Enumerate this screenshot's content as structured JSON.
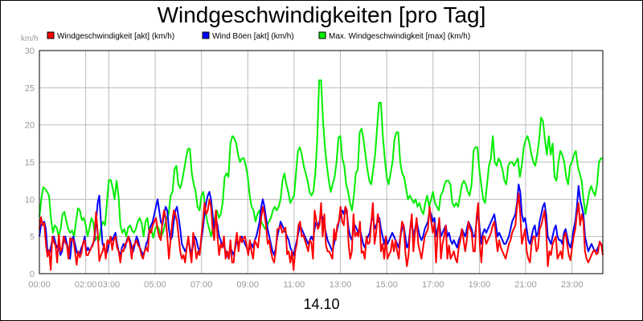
{
  "chart_data": {
    "type": "line",
    "title": "Windgeschwindigkeiten [pro Tag]",
    "ylabel": "km/h",
    "xlabel": "14.10",
    "ylim": [
      0,
      30
    ],
    "yticks": [
      "0",
      "5",
      "10",
      "15",
      "20",
      "25",
      "30"
    ],
    "xlim": [
      "00:00",
      "24:20"
    ],
    "xticks": [
      "00:00",
      "02:00",
      "03:00",
      "05:00",
      "07:00",
      "09:00",
      "11:00",
      "13:00",
      "15:00",
      "17:00",
      "19:00",
      "21:00",
      "23:00"
    ],
    "grid": true,
    "legend_position": "top",
    "series": [
      {
        "name": "Windgeschwindigkeit [akt] (km/h)",
        "color": "#ff0000",
        "values": [
          6.0,
          7.6,
          6.5,
          6.8,
          4.0,
          2.3,
          3.2,
          0.5,
          5.0,
          4.2,
          3.8,
          1.5,
          5.2,
          3.0,
          3.4,
          5.0,
          4.2,
          3.8,
          2.0,
          4.8,
          4.5,
          4.6,
          3.0,
          1.2,
          3.0,
          2.2,
          2.8,
          4.2,
          4.5,
          2.5,
          2.5,
          3.0,
          3.5,
          3.8,
          5.0,
          8.3,
          5.6,
          1.7,
          2.5,
          3.0,
          4.0,
          2.0,
          4.5,
          4.0,
          5.0,
          3.2,
          4.6,
          5.0,
          3.5,
          3.0,
          1.5,
          3.2,
          3.0,
          4.0,
          4.2,
          5.0,
          4.0,
          2.0,
          3.8,
          4.0,
          4.5,
          3.8,
          3.5,
          2.5,
          2.0,
          3.0,
          3.5,
          3.0,
          6.0,
          5.5,
          6.5,
          7.0,
          7.5,
          6.0,
          5.0,
          4.5,
          7.0,
          8.5,
          7.5,
          5.0,
          2.0,
          4.5,
          6.8,
          8.5,
          8.0,
          7.0,
          5.0,
          3.0,
          2.0,
          2.5,
          1.5,
          3.5,
          5.0,
          3.0,
          1.5,
          5.5,
          4.0,
          2.0,
          3.0,
          2.5,
          5.0,
          7.0,
          9.5,
          8.0,
          8.5,
          10.0,
          9.0,
          6.0,
          4.5,
          8.5,
          5.0,
          2.5,
          4.0,
          3.5,
          5.0,
          2.0,
          3.0,
          2.0,
          4.5,
          1.5,
          1.5,
          4.0,
          5.5,
          3.0,
          5.0,
          4.2,
          4.8,
          5.0,
          3.8,
          2.5,
          4.5,
          3.0,
          2.0,
          4.5,
          4.0,
          3.5,
          5.5,
          7.5,
          9.0,
          8.0,
          6.5,
          4.0,
          4.5,
          3.0,
          2.0,
          1.5,
          3.0,
          6.0,
          6.0,
          6.5,
          5.5,
          5.8,
          6.2,
          2.6,
          3.0,
          1.5,
          3.0,
          0.5,
          3.0,
          4.0,
          6.5,
          7.0,
          5.0,
          5.2,
          4.5,
          3.8,
          3.0,
          4.5,
          4.2,
          2.0,
          8.5,
          7.2,
          6.0,
          6.5,
          9.5,
          5.0,
          8.0,
          3.8,
          3.0,
          3.0,
          2.5,
          2.0,
          6.0,
          4.5,
          6.5,
          7.0,
          9.0,
          7.0,
          6.5,
          9.0,
          8.5,
          4.0,
          2.0,
          3.0,
          8.0,
          5.0,
          5.5,
          5.0,
          7.0,
          2.8,
          3.0,
          2.0,
          5.0,
          4.0,
          4.2,
          7.0,
          9.5,
          4.0,
          5.5,
          8.0,
          7.0,
          3.0,
          4.0,
          2.0,
          5.0,
          2.0,
          2.6,
          3.0,
          4.5,
          3.0,
          4.5,
          3.0,
          2.0,
          5.0,
          7.0,
          6.5,
          3.0,
          1.0,
          2.5,
          6.0,
          8.0,
          3.0,
          5.5,
          7.5,
          4.0,
          3.0,
          2.0,
          3.5,
          5.0,
          5.5,
          6.0,
          9.0,
          7.0,
          5.5,
          6.8,
          1.5,
          5.5,
          7.5,
          2.0,
          4.0,
          5.0,
          6.5,
          2.0,
          3.8,
          2.0,
          2.5,
          3.0,
          2.0,
          1.5,
          3.5,
          4.5,
          6.0,
          4.5,
          3.0,
          4.5,
          7.0,
          6.0,
          5.5,
          3.0,
          3.0,
          7.5,
          9.5,
          4.0,
          1.5,
          5.0,
          5.0,
          4.0,
          4.5,
          5.0,
          5.5,
          6.5,
          7.0,
          5.0,
          3.0,
          4.5,
          3.5,
          3.0,
          2.5,
          2.0,
          3.0,
          4.0,
          4.5,
          5.5,
          6.0,
          6.5,
          9.0,
          10.8,
          8.0,
          4.0,
          5.0,
          6.0,
          3.0,
          2.0,
          1.5,
          4.0,
          5.0,
          5.0,
          3.0,
          3.5,
          6.0,
          6.5,
          7.5,
          8.5,
          6.0,
          1.0,
          3.0,
          2.5,
          4.0,
          4.5,
          5.0,
          2.0,
          2.5,
          3.0,
          2.0,
          5.0,
          5.5,
          4.0,
          2.5,
          1.8,
          3.5,
          5.0,
          6.0,
          8.0,
          9.5,
          6.5,
          8.0,
          7.0,
          3.0,
          2.0,
          1.5,
          2.0,
          2.5,
          3.0,
          3.2,
          2.6,
          2.8,
          4.3,
          4.0,
          2.5
        ]
      },
      {
        "name": "Wind Böen [akt] (km/h)",
        "color": "#0000ff",
        "values": [
          5.0,
          6.5,
          6.8,
          7.0,
          6.0,
          3.0,
          2.5,
          3.5,
          4.5,
          5.0,
          4.0,
          3.5,
          4.0,
          2.5,
          3.0,
          4.5,
          5.0,
          4.0,
          3.0,
          2.0,
          4.5,
          5.0,
          4.0,
          3.0,
          2.5,
          2.8,
          3.5,
          4.0,
          5.0,
          3.0,
          3.5,
          3.0,
          3.5,
          4.0,
          4.5,
          7.0,
          9.5,
          10.5,
          7.0,
          4.0,
          3.5,
          2.5,
          3.0,
          4.0,
          5.0,
          4.5,
          5.0,
          5.5,
          4.0,
          3.0,
          2.5,
          3.5,
          4.0,
          3.5,
          4.5,
          5.0,
          4.5,
          3.5,
          3.0,
          4.0,
          5.0,
          4.5,
          3.5,
          3.0,
          2.5,
          3.0,
          4.0,
          4.5,
          6.0,
          6.5,
          7.0,
          8.0,
          9.0,
          10.0,
          8.5,
          7.0,
          6.5,
          8.0,
          9.0,
          8.5,
          6.0,
          4.5,
          5.0,
          7.0,
          8.5,
          9.0,
          7.5,
          6.0,
          4.0,
          3.5,
          3.0,
          3.5,
          4.5,
          3.5,
          2.5,
          4.0,
          5.0,
          4.5,
          3.5,
          3.0,
          4.5,
          6.0,
          8.0,
          9.5,
          10.5,
          11.0,
          10.0,
          8.0,
          6.0,
          7.5,
          6.5,
          5.0,
          4.5,
          3.5,
          4.0,
          3.0,
          2.5,
          2.0,
          3.5,
          3.0,
          2.5,
          3.5,
          4.5,
          4.0,
          4.5,
          5.0,
          4.5,
          4.0,
          3.5,
          3.0,
          3.5,
          4.0,
          3.5,
          4.5,
          5.0,
          6.0,
          7.0,
          9.0,
          10.0,
          9.0,
          7.5,
          6.0,
          5.0,
          4.0,
          3.0,
          2.5,
          3.5,
          5.0,
          6.0,
          7.0,
          6.5,
          6.0,
          5.5,
          5.0,
          4.5,
          3.5,
          3.0,
          2.5,
          3.5,
          4.5,
          5.5,
          6.5,
          6.0,
          5.5,
          5.0,
          4.5,
          4.0,
          4.5,
          5.0,
          4.5,
          6.0,
          7.0,
          6.5,
          7.0,
          8.0,
          7.5,
          6.5,
          5.5,
          4.5,
          4.0,
          3.5,
          3.0,
          4.0,
          5.0,
          6.0,
          7.0,
          8.0,
          8.5,
          8.0,
          9.0,
          8.0,
          6.0,
          5.0,
          4.5,
          6.0,
          6.5,
          6.0,
          5.5,
          6.0,
          5.0,
          4.0,
          3.5,
          4.5,
          5.0,
          5.5,
          7.0,
          8.0,
          6.0,
          6.5,
          7.0,
          7.5,
          6.0,
          5.0,
          4.0,
          5.0,
          4.0,
          4.5,
          5.0,
          5.5,
          5.0,
          4.5,
          4.0,
          3.5,
          5.0,
          6.0,
          6.5,
          5.0,
          3.5,
          4.0,
          6.0,
          7.0,
          5.0,
          6.0,
          7.0,
          6.0,
          5.0,
          4.5,
          5.0,
          6.0,
          6.5,
          7.0,
          8.5,
          8.0,
          7.0,
          7.5,
          5.0,
          6.0,
          7.0,
          5.0,
          5.5,
          6.0,
          6.5,
          5.0,
          5.5,
          4.5,
          4.0,
          4.5,
          4.0,
          3.5,
          4.5,
          5.0,
          6.0,
          5.5,
          5.0,
          6.0,
          7.0,
          6.5,
          6.0,
          5.0,
          5.0,
          7.0,
          8.5,
          6.0,
          4.0,
          5.5,
          6.0,
          5.5,
          6.0,
          6.5,
          7.0,
          7.5,
          8.0,
          6.5,
          5.0,
          5.5,
          5.0,
          4.5,
          4.0,
          4.0,
          4.5,
          5.0,
          6.0,
          7.0,
          7.5,
          8.0,
          9.5,
          12.0,
          11.0,
          8.0,
          7.0,
          7.5,
          6.0,
          4.5,
          4.0,
          5.0,
          6.0,
          6.5,
          5.0,
          5.5,
          7.0,
          8.0,
          9.0,
          9.5,
          8.0,
          5.0,
          4.5,
          4.0,
          5.0,
          6.0,
          6.5,
          5.0,
          4.5,
          4.5,
          4.0,
          5.5,
          6.0,
          5.0,
          4.0,
          3.5,
          4.5,
          6.0,
          7.0,
          9.0,
          11.8,
          10.0,
          9.0,
          8.0,
          5.0,
          4.0,
          3.0,
          3.5,
          4.0,
          3.5,
          3.0,
          3.0,
          3.5,
          4.0,
          4.0,
          3.0
        ]
      },
      {
        "name": "Max. Windgeschwindigkeit [max] (km/h)",
        "color": "#00ee00",
        "values": [
          7.6,
          10.0,
          11.6,
          11.4,
          11.0,
          10.5,
          7.5,
          5.5,
          6.5,
          6.2,
          5.0,
          6.0,
          8.0,
          8.3,
          7.0,
          6.0,
          5.5,
          5.8,
          5.0,
          7.0,
          8.8,
          8.5,
          7.2,
          7.5,
          6.5,
          5.0,
          6.2,
          7.5,
          6.8,
          4.5,
          5.0,
          4.5,
          6.3,
          7.0,
          6.5,
          9.5,
          12.6,
          12.6,
          11.5,
          10.0,
          12.5,
          10.5,
          6.5,
          5.5,
          6.0,
          5.0,
          6.2,
          6.5,
          5.8,
          5.5,
          6.0,
          7.0,
          7.5,
          6.8,
          5.0,
          7.0,
          7.5,
          5.5,
          6.0,
          4.8,
          6.0,
          6.5,
          6.0,
          5.0,
          5.5,
          6.5,
          7.5,
          8.0,
          10.5,
          11.0,
          14.0,
          14.5,
          12.0,
          11.5,
          12.5,
          14.0,
          15.5,
          16.8,
          16.8,
          13.5,
          12.0,
          11.0,
          9.0,
          8.5,
          10.5,
          11.0,
          8.5,
          7.0,
          6.0,
          5.0,
          6.5,
          7.5,
          8.5,
          7.5,
          8.0,
          9.5,
          13.0,
          13.5,
          13.0,
          17.5,
          18.5,
          18.2,
          17.5,
          16.0,
          15.0,
          15.5,
          15.5,
          14.5,
          13.0,
          10.5,
          9.0,
          8.5,
          7.0,
          8.0,
          8.5,
          7.0,
          6.5,
          6.0,
          6.5,
          7.0,
          7.5,
          8.5,
          9.0,
          8.5,
          9.0,
          10.0,
          12.5,
          13.5,
          12.0,
          11.0,
          9.5,
          10.0,
          10.5,
          13.5,
          16.5,
          17.0,
          16.0,
          14.5,
          13.5,
          12.5,
          11.0,
          10.5,
          11.0,
          13.5,
          18.0,
          26.0,
          26.0,
          20.5,
          17.0,
          14.5,
          12.5,
          11.0,
          12.0,
          13.0,
          15.0,
          18.3,
          18.5,
          15.5,
          14.5,
          12.0,
          11.0,
          9.5,
          8.5,
          10.5,
          13.5,
          14.0,
          19.0,
          19.5,
          18.0,
          16.0,
          14.0,
          12.5,
          12.0,
          14.0,
          16.0,
          19.5,
          23.0,
          23.0,
          18.5,
          15.5,
          13.0,
          12.0,
          13.5,
          15.0,
          18.0,
          19.0,
          19.0,
          15.0,
          13.5,
          13.0,
          11.5,
          10.0,
          10.5,
          10.0,
          9.5,
          10.0,
          9.0,
          9.5,
          8.5,
          8.0,
          9.5,
          10.5,
          9.0,
          10.0,
          11.0,
          9.5,
          9.0,
          8.5,
          10.5,
          11.0,
          12.0,
          12.5,
          12.5,
          12.0,
          9.5,
          9.0,
          9.5,
          9.0,
          10.5,
          12.0,
          12.5,
          12.0,
          11.0,
          10.5,
          12.0,
          16.5,
          17.0,
          17.0,
          14.0,
          12.0,
          10.0,
          9.5,
          12.0,
          14.5,
          15.5,
          18.5,
          15.0,
          14.5,
          15.5,
          15.0,
          14.0,
          12.5,
          12.0,
          14.5,
          15.0,
          15.0,
          14.5,
          15.0,
          15.5,
          13.0,
          14.5,
          17.0,
          18.0,
          18.5,
          17.5,
          16.0,
          15.0,
          14.5,
          16.0,
          18.0,
          21.0,
          20.5,
          18.0,
          16.0,
          18.5,
          16.0,
          17.5,
          13.0,
          12.5,
          15.0,
          16.5,
          16.0,
          15.0,
          13.0,
          12.0,
          14.5,
          15.0,
          16.0,
          16.5,
          14.5,
          13.5,
          12.5,
          10.0,
          8.0,
          9.5,
          11.0,
          11.8,
          11.0,
          10.5,
          12.0,
          15.0,
          15.5,
          15.5
        ]
      }
    ]
  }
}
